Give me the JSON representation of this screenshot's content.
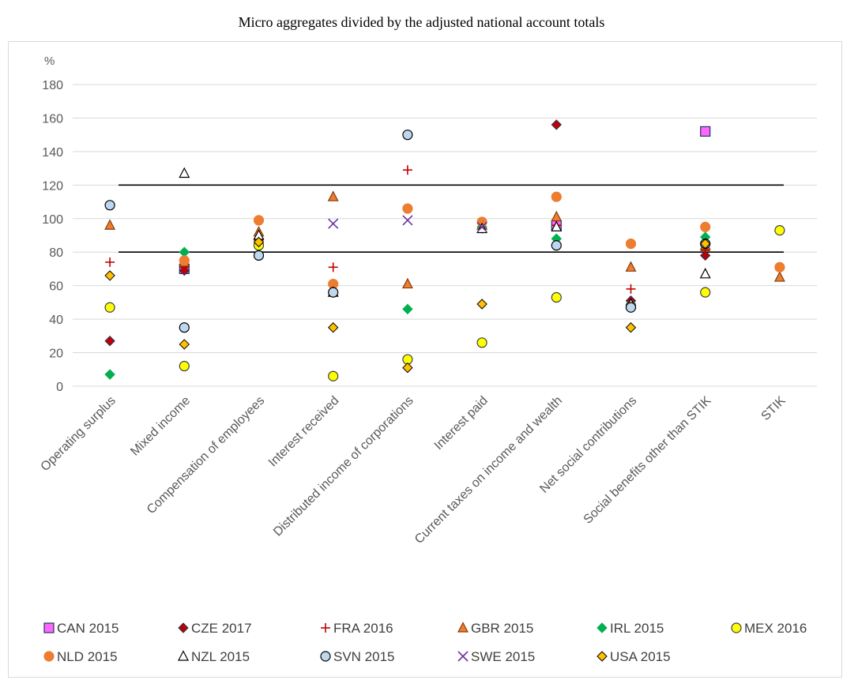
{
  "chart_data": {
    "type": "scatter",
    "title": "Micro aggregates divided by the adjusted national account totals",
    "ylabel": "%",
    "ylim": [
      0,
      180
    ],
    "yticks": [
      0,
      20,
      40,
      60,
      80,
      100,
      120,
      140,
      160,
      180
    ],
    "grid": true,
    "legend_position": "bottom",
    "reference_lines": [
      80,
      120
    ],
    "categories": [
      "Operating surplus",
      "Mixed income",
      "Compensation of employees",
      "Interest received",
      "Distributed income of corporations",
      "Interest paid",
      "Current taxes on income and wealth",
      "Net social contributions",
      "Social benefits other than STIK",
      "STIK"
    ],
    "series": [
      {
        "name": "CAN 2015",
        "marker": "square",
        "color": "#ff66ff",
        "edge": "#1f3864",
        "values": [
          null,
          70,
          null,
          null,
          null,
          null,
          96,
          null,
          152,
          null
        ]
      },
      {
        "name": "CZE 2017",
        "marker": "diamond",
        "color": "#c00000",
        "edge": "#1f3864",
        "values": [
          27,
          69,
          88,
          null,
          null,
          null,
          156,
          51,
          78,
          null
        ]
      },
      {
        "name": "FRA 2016",
        "marker": "plus",
        "color": "#c00000",
        "edge": "#c00000",
        "values": [
          74,
          71,
          87,
          71,
          129,
          94,
          96,
          58,
          81,
          null
        ]
      },
      {
        "name": "GBR 2015",
        "marker": "triangle",
        "color": "#ed7d31",
        "edge": "#843c0c",
        "values": [
          96,
          74,
          92,
          113,
          61,
          96,
          101,
          71,
          84,
          65
        ]
      },
      {
        "name": "IRL 2015",
        "marker": "diamond",
        "color": "#00b050",
        "edge": "#00b050",
        "values": [
          7,
          80,
          85,
          null,
          46,
          95,
          88,
          null,
          89,
          null
        ]
      },
      {
        "name": "MEX 2016",
        "marker": "circle",
        "color": "#ffff00",
        "edge": "#404040",
        "values": [
          47,
          12,
          84,
          6,
          16,
          26,
          53,
          48,
          56,
          93
        ]
      },
      {
        "name": "NLD 2015",
        "marker": "circle",
        "color": "#ed7d31",
        "edge": "#ed7d31",
        "values": [
          null,
          75,
          99,
          61,
          106,
          98,
          113,
          85,
          95,
          71
        ]
      },
      {
        "name": "NZL 2015",
        "marker": "triangle",
        "color": "#ffffff",
        "edge": "#000000",
        "values": [
          null,
          127,
          90,
          56,
          null,
          94,
          95,
          49,
          67,
          null
        ]
      },
      {
        "name": "SVN 2015",
        "marker": "circle",
        "color": "#bdd7ee",
        "edge": "#000000",
        "values": [
          108,
          35,
          78,
          56,
          150,
          null,
          84,
          47,
          85,
          null
        ]
      },
      {
        "name": "SWE 2015",
        "marker": "x",
        "color": "#7030a0",
        "edge": "#7030a0",
        "values": [
          null,
          null,
          null,
          97,
          99,
          95,
          null,
          null,
          null,
          null
        ]
      },
      {
        "name": "USA 2015",
        "marker": "diamond",
        "color": "#ffc000",
        "edge": "#000000",
        "values": [
          66,
          25,
          86,
          35,
          11,
          49,
          null,
          35,
          85,
          null
        ]
      }
    ]
  }
}
